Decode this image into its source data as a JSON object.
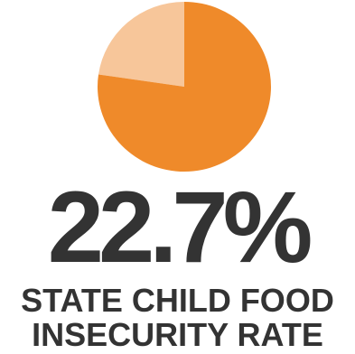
{
  "colors": {
    "primary_slice": "#ef8a2a",
    "secondary_slice": "#f7c69a",
    "text": "#333333",
    "background": "#ffffff"
  },
  "stat": {
    "value_label": "22.7%"
  },
  "caption": {
    "line1": "STATE CHILD FOOD",
    "line2": "INSECURITY RATE"
  },
  "chart_data": {
    "type": "pie",
    "title": "",
    "slices": [
      {
        "value": 22.7,
        "color": "#f7c69a"
      },
      {
        "value": 77.3,
        "color": "#ef8a2a"
      }
    ],
    "start_angle_deg": 0,
    "direction": "counterclockwise",
    "legend": "none"
  }
}
